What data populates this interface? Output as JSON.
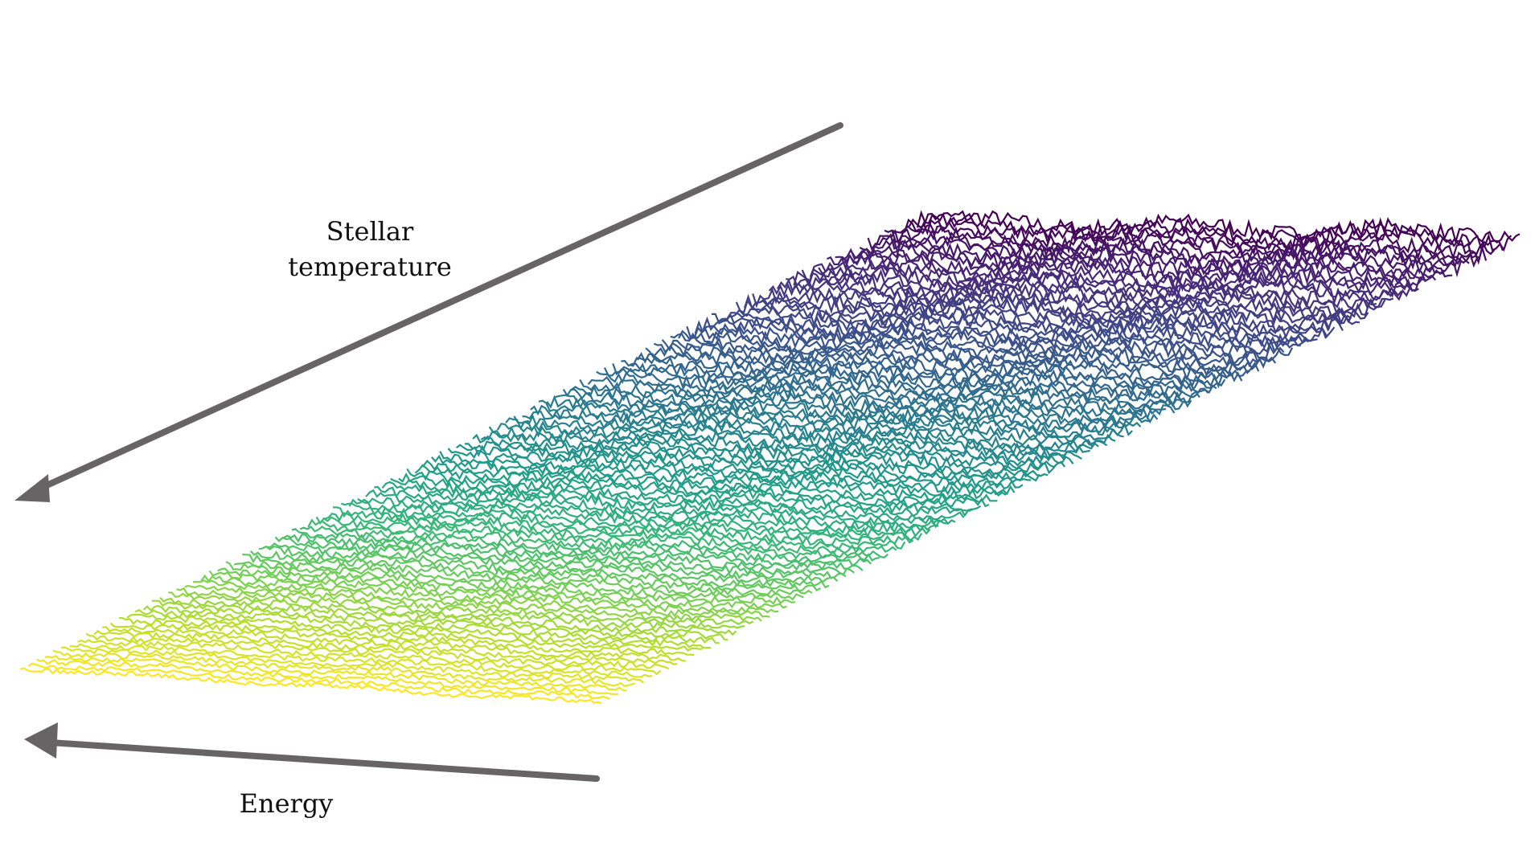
{
  "labels": {
    "temperature_line1": "Stellar",
    "temperature_line2": "temperature",
    "energy": "Energy"
  },
  "colors": {
    "arrow": "#666464",
    "colormap": "viridis",
    "low_temperature": "#440154",
    "high_temperature": "#fde725"
  }
}
